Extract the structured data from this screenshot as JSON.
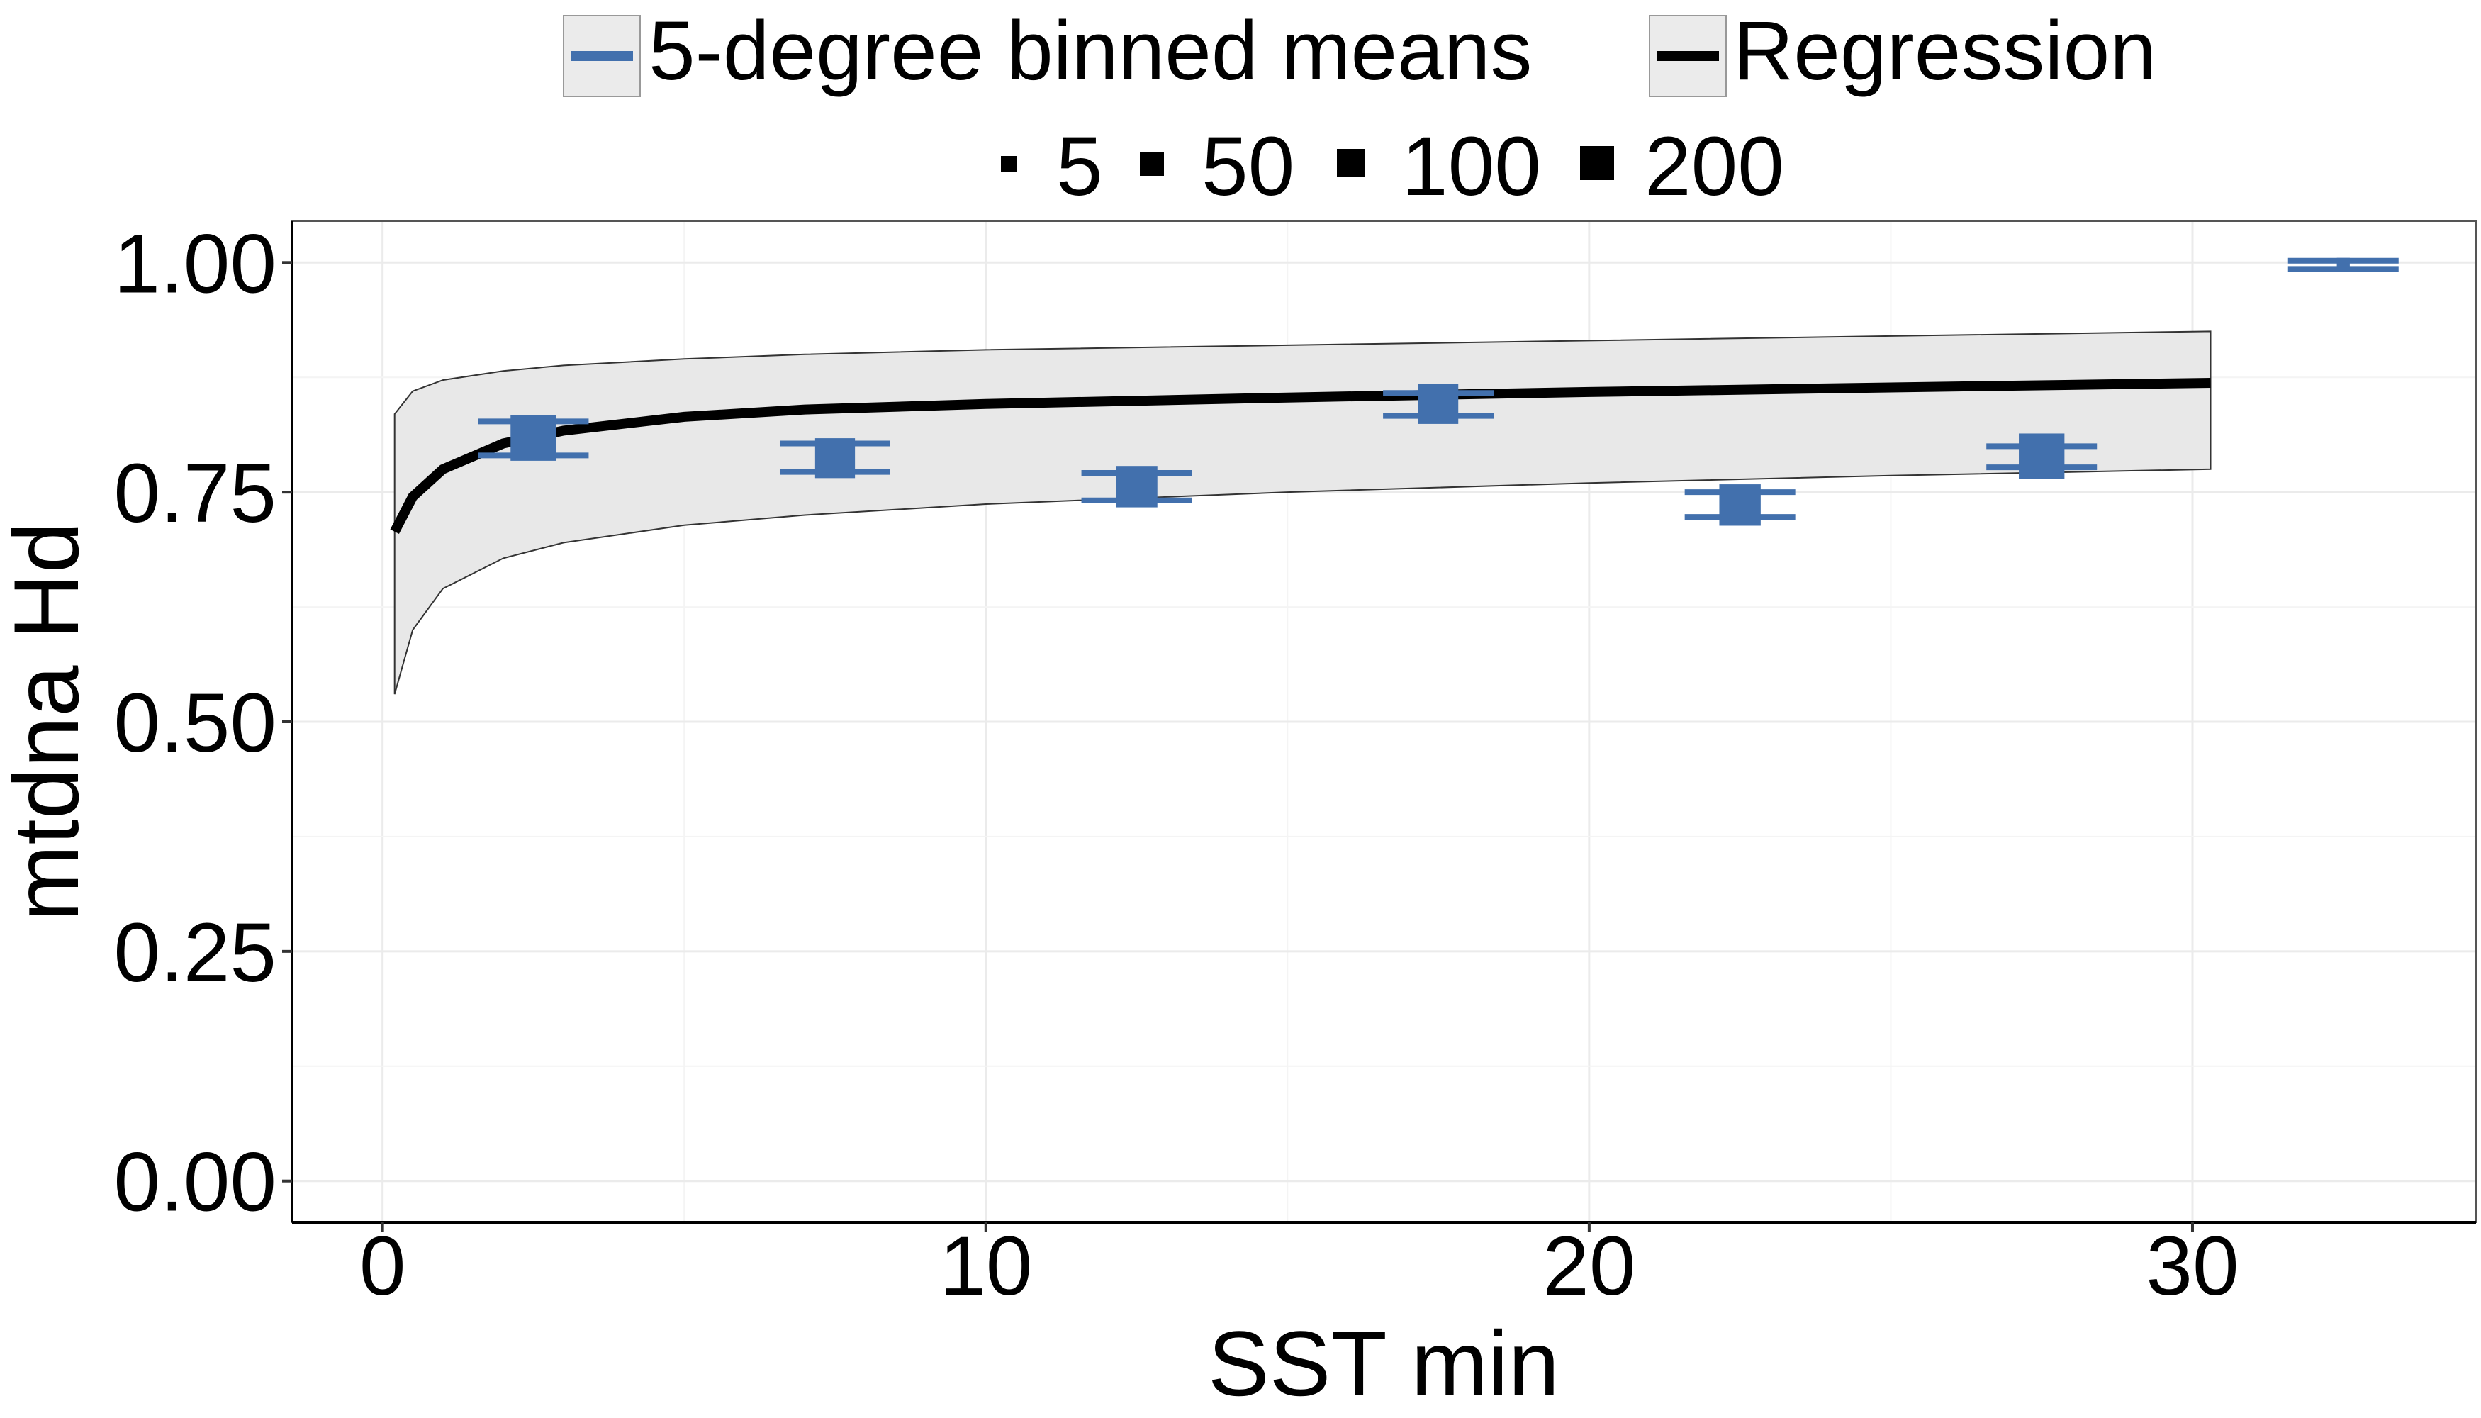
{
  "chart_data": {
    "type": "scatter",
    "xlabel": "SST min",
    "ylabel": "mtdna Hd",
    "xlim": [
      -1.5,
      34.7
    ],
    "ylim": [
      -0.045,
      1.045
    ],
    "x_ticks": [
      0,
      10,
      20,
      30
    ],
    "x_tick_labels": [
      "0",
      "10",
      "20",
      "30"
    ],
    "y_ticks": [
      0,
      0.25,
      0.5,
      0.75,
      1.0
    ],
    "y_tick_labels": [
      "0.00",
      "0.25",
      "0.50",
      "0.75",
      "1.00"
    ],
    "grid": true,
    "legend_position": "top",
    "colors": {
      "points": "#4270ad",
      "band": "#e8e8e8",
      "regression": "#000000"
    },
    "legend": {
      "series": [
        {
          "label": "5-degree binned means",
          "kind": "errorbar"
        },
        {
          "label": "Regression",
          "kind": "line"
        }
      ],
      "size_entries": [
        {
          "label": "5",
          "value": 5
        },
        {
          "label": "50",
          "value": 50
        },
        {
          "label": "100",
          "value": 100
        },
        {
          "label": "200",
          "value": 200
        }
      ]
    },
    "binned_means": [
      {
        "x": 2.5,
        "y": 0.809,
        "ymin": 0.79,
        "ymax": 0.827,
        "n": 150
      },
      {
        "x": 7.5,
        "y": 0.787,
        "ymin": 0.772,
        "ymax": 0.803,
        "n": 110
      },
      {
        "x": 12.5,
        "y": 0.756,
        "ymin": 0.741,
        "ymax": 0.771,
        "n": 120
      },
      {
        "x": 17.5,
        "y": 0.846,
        "ymin": 0.833,
        "ymax": 0.858,
        "n": 110
      },
      {
        "x": 22.5,
        "y": 0.736,
        "ymin": 0.723,
        "ymax": 0.75,
        "n": 120
      },
      {
        "x": 27.5,
        "y": 0.789,
        "ymin": 0.777,
        "ymax": 0.8,
        "n": 150
      },
      {
        "x": 32.5,
        "y": 0.998,
        "ymin": 0.993,
        "ymax": 1.002,
        "n": 5
      }
    ],
    "regression": {
      "x": [
        0.2,
        0.5,
        1,
        2,
        3,
        5,
        7,
        10,
        15,
        20,
        25,
        30.3
      ],
      "y": [
        0.707,
        0.745,
        0.775,
        0.803,
        0.817,
        0.832,
        0.84,
        0.846,
        0.853,
        0.859,
        0.864,
        0.869
      ],
      "lower": [
        0.53,
        0.6,
        0.645,
        0.678,
        0.695,
        0.714,
        0.725,
        0.737,
        0.75,
        0.76,
        0.768,
        0.775
      ],
      "upper": [
        0.835,
        0.86,
        0.872,
        0.882,
        0.888,
        0.895,
        0.9,
        0.905,
        0.91,
        0.915,
        0.92,
        0.925
      ]
    }
  }
}
